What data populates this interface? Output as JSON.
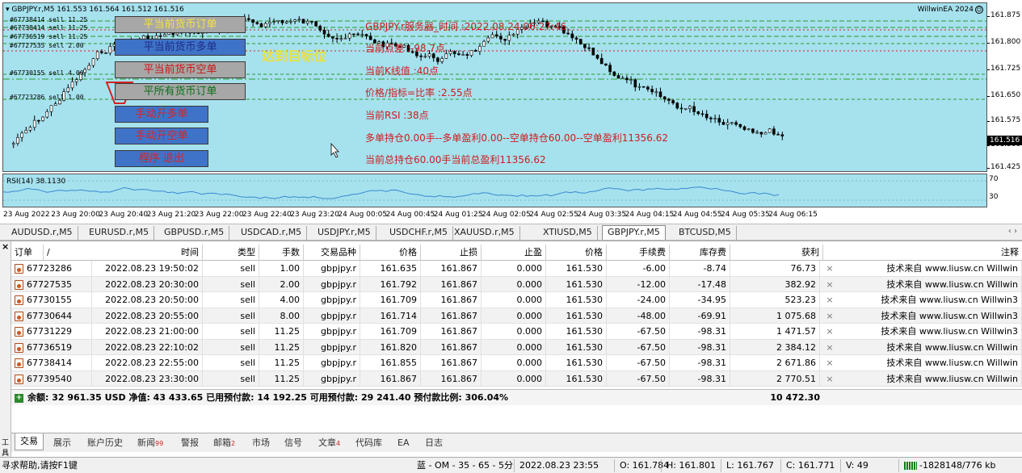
{
  "chart": {
    "symbol_info": "GBPJPY.r,M5  161.553 161.564 161.512 161.516",
    "ea_name": "WillwinEA 2024",
    "current_price": "161.516",
    "price_ticks": [
      "161.875",
      "161.800",
      "161.725",
      "161.650",
      "161.575",
      "161.500",
      "161.425"
    ],
    "time_ticks": [
      "23 Aug 2022",
      "23 Aug 20:00",
      "23 Aug 20:40",
      "23 Aug 21:20",
      "23 Aug 22:00",
      "23 Aug 22:40",
      "23 Aug 23:20",
      "24 Aug 00:05",
      "24 Aug 00:45",
      "24 Aug 01:25",
      "24 Aug 02:05",
      "24 Aug 02:55",
      "24 Aug 03:35",
      "24 Aug 04:15",
      "24 Aug 04:55",
      "24 Aug 05:35",
      "24 Aug 06:15"
    ],
    "rsi_label": "RSI(14) 38.1130",
    "rsi_ticks": [
      "70",
      "30"
    ],
    "order_tags": [
      "#67738414 sell 11.25",
      "#67736519 sell 11.25",
      "#67727535 sell 2.00",
      "#67730155 sell 4.00",
      "#67723286 sell 1.00"
    ],
    "colors": {
      "plot_bg": "#a6e1ee",
      "bull": "#ffffff",
      "bear": "#000000",
      "sl_line": "#cc2222",
      "order_line": "#2a9a2a",
      "rsi_line": "#3a8ad0"
    }
  },
  "ea_panel": {
    "buttons": {
      "close_all": "平当前货币订单",
      "close_buy": "平当前货币多单",
      "close_sell": "平当前货币空单",
      "close_every": "平所有货币订单",
      "open_buy": "手动开多单",
      "open_sell": "手动开空单",
      "exit": "程序 退出"
    },
    "reach_target": "达到目标位",
    "stats": [
      "GBPJPY.r服务器_时间 :2022.08.24 06:27:46",
      "当前点差 :-98.7点",
      "当前K线值 :40点",
      "价格/指标=比率 :2.55点",
      "当前RSI :38点",
      "多单持仓0.00手--多单盈利0.00--空单持仓60.00--空单盈利11356.62",
      "当前总持仓60.00手当前总盈利11356.62"
    ]
  },
  "symbol_tabs": [
    "AUDUSD.r,M5",
    "EURUSD.r,M5",
    "GBPUSD.r,M5",
    "USDCAD.r,M5",
    "USDJPY.r,M5",
    "USDCHF.r,M5",
    "XAUUSD.r,M5",
    "XTIUSD,M5",
    "GBPJPY.r,M5",
    "BTCUSD,M5"
  ],
  "active_symbol_tab": "GBPJPY.r,M5",
  "tab_arrows": "‹ ›",
  "table": {
    "headers": [
      "订单",
      "/",
      "时间",
      "类型",
      "手数",
      "交易品种",
      "价格",
      "止损",
      "止盈",
      "价格",
      "手续费",
      "库存费",
      "获利",
      "注释"
    ],
    "rows": [
      [
        "67723286",
        "2022.08.23 19:50:02",
        "sell",
        "1.00",
        "gbpjpy.r",
        "161.635",
        "161.867",
        "0.000",
        "161.530",
        "-6.00",
        "-8.74",
        "76.73",
        "技术来自 www.liusw.cn Willwin"
      ],
      [
        "67727535",
        "2022.08.23 20:30:00",
        "sell",
        "2.00",
        "gbpjpy.r",
        "161.792",
        "161.867",
        "0.000",
        "161.530",
        "-12.00",
        "-17.48",
        "382.92",
        "技术来自 www.liusw.cn Willwin"
      ],
      [
        "67730155",
        "2022.08.23 20:50:00",
        "sell",
        "4.00",
        "gbpjpy.r",
        "161.709",
        "161.867",
        "0.000",
        "161.530",
        "-24.00",
        "-34.95",
        "523.23",
        "技术来自 www.liusw.cn Willwin3"
      ],
      [
        "67730644",
        "2022.08.23 20:55:00",
        "sell",
        "8.00",
        "gbpjpy.r",
        "161.714",
        "161.867",
        "0.000",
        "161.530",
        "-48.00",
        "-69.91",
        "1 075.68",
        "技术来自 www.liusw.cn Willwin3"
      ],
      [
        "67731229",
        "2022.08.23 21:00:00",
        "sell",
        "11.25",
        "gbpjpy.r",
        "161.709",
        "161.867",
        "0.000",
        "161.530",
        "-67.50",
        "-98.31",
        "1 471.57",
        "技术来自 www.liusw.cn Willwin3"
      ],
      [
        "67736519",
        "2022.08.23 22:10:02",
        "sell",
        "11.25",
        "gbpjpy.r",
        "161.820",
        "161.867",
        "0.000",
        "161.530",
        "-67.50",
        "-98.31",
        "2 384.12",
        "技术来自 www.liusw.cn Willwin"
      ],
      [
        "67738414",
        "2022.08.23 22:55:00",
        "sell",
        "11.25",
        "gbpjpy.r",
        "161.855",
        "161.867",
        "0.000",
        "161.530",
        "-67.50",
        "-98.31",
        "2 671.86",
        "技术来自 www.liusw.cn Willwin"
      ],
      [
        "67739540",
        "2022.08.23 23:30:00",
        "sell",
        "11.25",
        "gbpjpy.r",
        "161.867",
        "161.867",
        "0.000",
        "161.530",
        "-67.50",
        "-98.31",
        "2 770.51",
        "技术来自 www.liusw.cn Willwin"
      ]
    ],
    "balance_text": "余额: 32 961.35 USD  净值: 43 433.65  已用预付款: 14 192.25  可用预付款: 29 241.40  预付款比例: 306.04%",
    "total_profit": "10 472.30"
  },
  "terminal_side_label": "工具箱",
  "bottom_tabs": [
    {
      "label": "交易",
      "badge": ""
    },
    {
      "label": "展示",
      "badge": ""
    },
    {
      "label": "账户历史",
      "badge": ""
    },
    {
      "label": "新闻",
      "badge": "99"
    },
    {
      "label": "警报",
      "badge": ""
    },
    {
      "label": "邮箱",
      "badge": "2"
    },
    {
      "label": "市场",
      "badge": ""
    },
    {
      "label": "信号",
      "badge": ""
    },
    {
      "label": "文章",
      "badge": "4"
    },
    {
      "label": "代码库",
      "badge": ""
    },
    {
      "label": "EA",
      "badge": ""
    },
    {
      "label": "日志",
      "badge": ""
    }
  ],
  "active_bottom_tab": "交易",
  "statusbar": {
    "help": "寻求帮助,请按F1键",
    "profile": "蓝 - OM - 35 - 65 - 5分",
    "datetime": "2022.08.23 23:55",
    "open": "O: 161.784",
    "high": "H: 161.801",
    "low": "L: 161.767",
    "close": "C: 161.771",
    "volume": "V: 49",
    "traffic": "-1828148/776 kb"
  }
}
